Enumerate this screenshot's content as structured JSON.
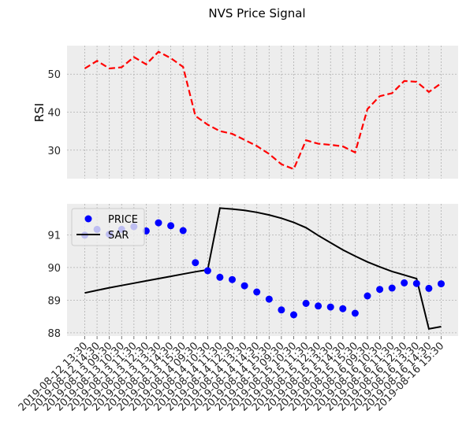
{
  "title": "NVS Price Signal",
  "colors": {
    "panel_bg": "#ededed",
    "grid": "#b0b0b0",
    "rsi_line": "#ff0000",
    "price_marker": "#0000ff",
    "sar_line": "#000000"
  },
  "chart_data": [
    {
      "type": "line",
      "ylabel": "RSI",
      "yticks": [
        30,
        40,
        50
      ],
      "ylim": [
        22.5,
        57.5
      ],
      "grid": true,
      "series": [
        {
          "style": "dashed",
          "values": [
            51.5,
            53.5,
            51.5,
            51.8,
            54.5,
            52.6,
            55.9,
            54.2,
            51.9,
            39.0,
            36.7,
            35.0,
            34.3,
            32.7,
            31.1,
            29.0,
            26.3,
            25.0,
            32.6,
            31.7,
            31.4,
            31.0,
            29.4,
            40.8,
            44.2,
            45.0,
            48.2,
            48.0,
            45.3,
            47.6
          ]
        }
      ]
    },
    {
      "type": "scatter+line",
      "yticks": [
        88,
        89,
        90,
        91
      ],
      "ylim": [
        87.9,
        91.95
      ],
      "grid": true,
      "legend": "upper-left",
      "categories": [
        "2019-08-12 13:30",
        "2019-08-12 14:30",
        "2019-08-13 09:30",
        "2019-08-13 10:30",
        "2019-08-13 11:30",
        "2019-08-13 12:30",
        "2019-08-13 13:30",
        "2019-08-13 14:30",
        "2019-08-13 15:30",
        "2019-08-14 09:30",
        "2019-08-14 10:30",
        "2019-08-14 11:30",
        "2019-08-14 12:30",
        "2019-08-14 13:30",
        "2019-08-14 14:30",
        "2019-08-14 15:30",
        "2019-08-15 09:30",
        "2019-08-15 10:30",
        "2019-08-15 11:30",
        "2019-08-15 12:30",
        "2019-08-15 13:30",
        "2019-08-15 14:30",
        "2019-08-15 15:30",
        "2019-08-16 09:30",
        "2019-08-16 10:30",
        "2019-08-16 11:30",
        "2019-08-16 12:30",
        "2019-08-16 13:30",
        "2019-08-16 14:30",
        "2019-08-16 15:30"
      ],
      "series": [
        {
          "name": "PRICE",
          "marker": "circle",
          "values": [
            90.99,
            91.17,
            91.02,
            91.17,
            91.25,
            91.12,
            91.37,
            91.28,
            91.13,
            90.15,
            89.9,
            89.7,
            89.63,
            89.44,
            89.25,
            89.03,
            88.7,
            88.55,
            88.9,
            88.82,
            88.79,
            88.74,
            88.6,
            89.13,
            89.33,
            89.37,
            89.53,
            89.51,
            89.36,
            89.5
          ]
        },
        {
          "name": "SAR",
          "style": "solid",
          "values": [
            89.22,
            89.3,
            89.38,
            89.45,
            89.52,
            89.59,
            89.66,
            89.73,
            89.8,
            89.87,
            89.93,
            91.82,
            91.79,
            91.75,
            91.69,
            91.61,
            91.51,
            91.38,
            91.22,
            90.98,
            90.76,
            90.54,
            90.35,
            90.17,
            90.02,
            89.88,
            89.77,
            89.66,
            88.12,
            88.19
          ]
        }
      ]
    }
  ]
}
